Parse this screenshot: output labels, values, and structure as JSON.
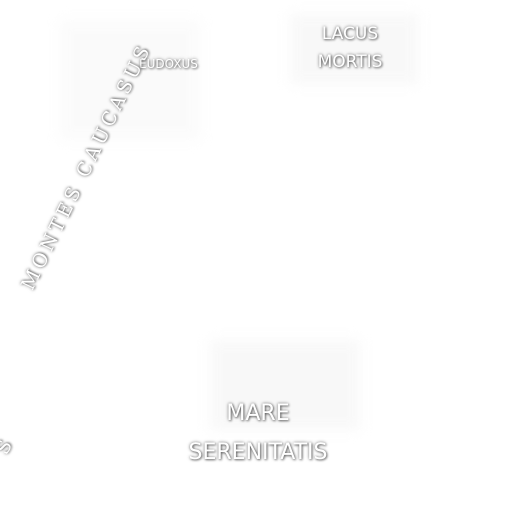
{
  "map": {
    "background_color": "#ffffff",
    "label_color": "#ffffff",
    "labels": {
      "lacus_mortis": [
        "LACUS",
        "MORTIS"
      ],
      "eudoxus": "EUDOXUS",
      "mare_serenitatis": [
        "MARE",
        "SERENITATIS"
      ],
      "montes_caucasus": "MONTES CAUCASUS",
      "edge_fragment": "S"
    }
  }
}
